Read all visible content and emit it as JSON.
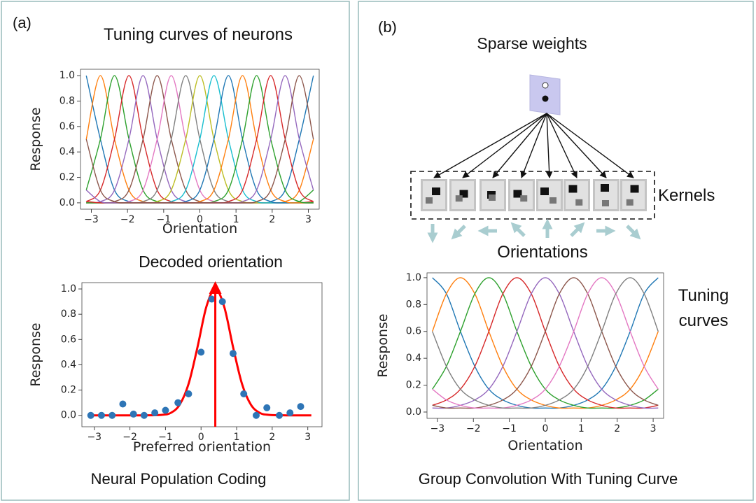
{
  "panels": [
    {
      "label": "(a)",
      "caption": "Neural Population Coding"
    },
    {
      "label": "(b)",
      "caption": "Group Convolution With Tuning Curve",
      "diagram": {
        "title": "Sparse weights",
        "kernels_label": "Kernels",
        "orientations_label": "Orientations"
      }
    }
  ],
  "chart_data": [
    {
      "type": "line",
      "title": "Tuning curves of neurons",
      "x_label": "Orientation",
      "y_label": "Response",
      "xlim": [
        -3.3,
        3.3
      ],
      "ylim": [
        -0.05,
        1.05
      ],
      "xticks": [
        {
          "value": -3,
          "label": "−3"
        },
        {
          "value": -2,
          "label": "−2"
        },
        {
          "value": -1,
          "label": "−1"
        },
        0,
        1,
        2,
        3
      ],
      "yticks": [
        {
          "value": 0,
          "label": "0.0"
        },
        0.2,
        0.4,
        0.6,
        0.8,
        {
          "value": 1,
          "label": "1.0"
        }
      ],
      "x": [
        -3.14,
        -2.75,
        -2.36,
        -1.96,
        -1.57,
        -1.18,
        -0.79,
        -0.39,
        0,
        0.39,
        0.79,
        1.18,
        1.57,
        1.96,
        2.36,
        2.75,
        3.14
      ],
      "series": [
        {
          "color": "#1f77b4",
          "values": [
            1,
            0.5,
            0.1,
            0.01,
            0,
            0,
            0,
            0,
            0,
            0,
            0,
            0,
            0,
            0.01,
            0.1,
            0.5,
            1
          ]
        },
        {
          "color": "#ff7f0e",
          "values": [
            0.5,
            1,
            0.5,
            0.1,
            0.01,
            0,
            0,
            0,
            0,
            0,
            0,
            0,
            0,
            0,
            0.01,
            0.1,
            0.5
          ]
        },
        {
          "color": "#2ca02c",
          "values": [
            0.1,
            0.5,
            1,
            0.5,
            0.1,
            0.01,
            0,
            0,
            0,
            0,
            0,
            0,
            0,
            0,
            0,
            0.01,
            0.1
          ]
        },
        {
          "color": "#d62728",
          "values": [
            0.01,
            0.1,
            0.5,
            1,
            0.5,
            0.1,
            0.01,
            0,
            0,
            0,
            0,
            0,
            0,
            0,
            0,
            0,
            0.01
          ]
        },
        {
          "color": "#9467bd",
          "values": [
            0,
            0.01,
            0.1,
            0.5,
            1,
            0.5,
            0.1,
            0.01,
            0,
            0,
            0,
            0,
            0,
            0,
            0,
            0,
            0
          ]
        },
        {
          "color": "#8c564b",
          "values": [
            0,
            0,
            0.01,
            0.1,
            0.5,
            1,
            0.5,
            0.1,
            0.01,
            0,
            0,
            0,
            0,
            0,
            0,
            0,
            0
          ]
        },
        {
          "color": "#e377c2",
          "values": [
            0,
            0,
            0,
            0.01,
            0.1,
            0.5,
            1,
            0.5,
            0.1,
            0.01,
            0,
            0,
            0,
            0,
            0,
            0,
            0
          ]
        },
        {
          "color": "#7f7f7f",
          "values": [
            0,
            0,
            0,
            0,
            0.01,
            0.1,
            0.5,
            1,
            0.5,
            0.1,
            0.01,
            0,
            0,
            0,
            0,
            0,
            0
          ]
        },
        {
          "color": "#bcbd22",
          "values": [
            0,
            0,
            0,
            0,
            0,
            0.01,
            0.1,
            0.5,
            1,
            0.5,
            0.1,
            0.01,
            0,
            0,
            0,
            0,
            0
          ]
        },
        {
          "color": "#17becf",
          "values": [
            0,
            0,
            0,
            0,
            0,
            0,
            0.01,
            0.1,
            0.5,
            1,
            0.5,
            0.1,
            0.01,
            0,
            0,
            0,
            0
          ]
        },
        {
          "color": "#1f77b4",
          "values": [
            0,
            0,
            0,
            0,
            0,
            0,
            0,
            0.01,
            0.1,
            0.5,
            1,
            0.5,
            0.1,
            0.01,
            0,
            0,
            0
          ]
        },
        {
          "color": "#ff7f0e",
          "values": [
            0,
            0,
            0,
            0,
            0,
            0,
            0,
            0,
            0.01,
            0.1,
            0.5,
            1,
            0.5,
            0.1,
            0.01,
            0,
            0
          ]
        },
        {
          "color": "#2ca02c",
          "values": [
            0,
            0,
            0,
            0,
            0,
            0,
            0,
            0,
            0,
            0.01,
            0.1,
            0.5,
            1,
            0.5,
            0.1,
            0.01,
            0
          ]
        },
        {
          "color": "#d62728",
          "values": [
            0.01,
            0,
            0,
            0,
            0,
            0,
            0,
            0,
            0,
            0,
            0.01,
            0.1,
            0.5,
            1,
            0.5,
            0.1,
            0.01
          ]
        },
        {
          "color": "#9467bd",
          "values": [
            0.1,
            0.01,
            0,
            0,
            0,
            0,
            0,
            0,
            0,
            0,
            0,
            0.01,
            0.1,
            0.5,
            1,
            0.5,
            0.1
          ]
        },
        {
          "color": "#8c564b",
          "values": [
            0.5,
            0.1,
            0.01,
            0,
            0,
            0,
            0,
            0,
            0,
            0,
            0,
            0,
            0.01,
            0.1,
            0.5,
            1,
            0.5
          ]
        }
      ]
    },
    {
      "type": "scatter",
      "title": "Decoded orientation",
      "x_label": "Preferred orientation",
      "y_label": "Response",
      "xlim": [
        -3.35,
        3.4
      ],
      "ylim": [
        -0.09,
        1.05
      ],
      "xticks": [
        {
          "value": -3,
          "label": "−3"
        },
        {
          "value": -2,
          "label": "−2"
        },
        {
          "value": -1,
          "label": "−1"
        },
        0,
        1,
        2,
        3
      ],
      "yticks": [
        {
          "value": 0,
          "label": "0.0"
        },
        0.2,
        0.4,
        0.6,
        0.8,
        {
          "value": 1,
          "label": "1.0"
        }
      ],
      "x": [
        -3.1,
        -2.8,
        -2.5,
        -2.2,
        -1.9,
        -1.6,
        -1.3,
        -1.0,
        -0.65,
        -0.35,
        0,
        0.3,
        0.6,
        0.9,
        1.2,
        1.55,
        1.85,
        2.2,
        2.5,
        2.8
      ],
      "values": [
        0,
        0,
        0,
        0.09,
        0.01,
        0,
        0.02,
        0.04,
        0.1,
        0.17,
        0.5,
        0.92,
        0.9,
        0.49,
        0.17,
        0,
        0.06,
        0,
        0.02,
        0.07
      ],
      "color": "#2e75b6",
      "fit": {
        "color": "#ff0000",
        "x": [
          -3.1,
          -2.6,
          -2.1,
          -1.6,
          -1.1,
          -0.85,
          -0.6,
          -0.35,
          -0.1,
          0.15,
          0.4,
          0.65,
          0.9,
          1.15,
          1.4,
          1.65,
          1.9,
          2.4,
          2.9,
          3.1
        ],
        "values": [
          0,
          0,
          0,
          0,
          0.004,
          0.02,
          0.085,
          0.25,
          0.54,
          0.86,
          1,
          0.86,
          0.54,
          0.25,
          0.085,
          0.02,
          0.004,
          0,
          0,
          0
        ]
      },
      "decoded": 0.4
    },
    {
      "type": "line",
      "title": "Tuning curves",
      "x_label": "Orientation",
      "y_label": "Response",
      "xlim": [
        -3.29,
        3.29
      ],
      "ylim": [
        -0.047,
        1.036
      ],
      "xticks": [
        {
          "value": -3,
          "label": "−3"
        },
        {
          "value": -2,
          "label": "−2"
        },
        {
          "value": -1,
          "label": "−1"
        },
        0,
        1,
        2,
        3
      ],
      "yticks": [
        {
          "value": 0,
          "label": "0.0"
        },
        0.2,
        0.4,
        0.6,
        0.8,
        {
          "value": 1,
          "label": "1.0"
        }
      ],
      "x": [
        -3.14,
        -2.75,
        -2.36,
        -1.96,
        -1.57,
        -1.18,
        -0.79,
        -0.39,
        0,
        0.39,
        0.79,
        1.18,
        1.57,
        1.96,
        2.36,
        2.75,
        3.14
      ],
      "series": [
        {
          "color": "#1f77b4",
          "values": [
            1,
            0.88,
            0.6,
            0.34,
            0.17,
            0.09,
            0.05,
            0.03,
            0.03,
            0.03,
            0.05,
            0.09,
            0.17,
            0.34,
            0.6,
            0.88,
            1
          ]
        },
        {
          "color": "#ff7f0e",
          "values": [
            0.6,
            0.88,
            1,
            0.88,
            0.6,
            0.34,
            0.17,
            0.09,
            0.05,
            0.03,
            0.03,
            0.03,
            0.05,
            0.09,
            0.17,
            0.34,
            0.6
          ]
        },
        {
          "color": "#2ca02c",
          "values": [
            0.17,
            0.34,
            0.6,
            0.88,
            1,
            0.88,
            0.6,
            0.34,
            0.17,
            0.09,
            0.05,
            0.03,
            0.03,
            0.03,
            0.05,
            0.09,
            0.17
          ]
        },
        {
          "color": "#d62728",
          "values": [
            0.05,
            0.09,
            0.17,
            0.34,
            0.6,
            0.88,
            1,
            0.88,
            0.6,
            0.34,
            0.17,
            0.09,
            0.05,
            0.03,
            0.03,
            0.03,
            0.05
          ]
        },
        {
          "color": "#9467bd",
          "values": [
            0.03,
            0.03,
            0.05,
            0.09,
            0.17,
            0.34,
            0.6,
            0.88,
            1,
            0.88,
            0.6,
            0.34,
            0.17,
            0.09,
            0.05,
            0.03,
            0.03
          ]
        },
        {
          "color": "#8c564b",
          "values": [
            0.05,
            0.03,
            0.03,
            0.03,
            0.05,
            0.09,
            0.17,
            0.34,
            0.6,
            0.88,
            1,
            0.88,
            0.6,
            0.34,
            0.17,
            0.09,
            0.05
          ]
        },
        {
          "color": "#e377c2",
          "values": [
            0.17,
            0.09,
            0.05,
            0.03,
            0.03,
            0.03,
            0.05,
            0.09,
            0.17,
            0.34,
            0.6,
            0.88,
            1,
            0.88,
            0.6,
            0.34,
            0.17
          ]
        },
        {
          "color": "#7f7f7f",
          "values": [
            0.6,
            0.34,
            0.17,
            0.09,
            0.05,
            0.03,
            0.03,
            0.03,
            0.05,
            0.09,
            0.17,
            0.34,
            0.6,
            0.88,
            1,
            0.88,
            0.6
          ]
        }
      ]
    }
  ]
}
